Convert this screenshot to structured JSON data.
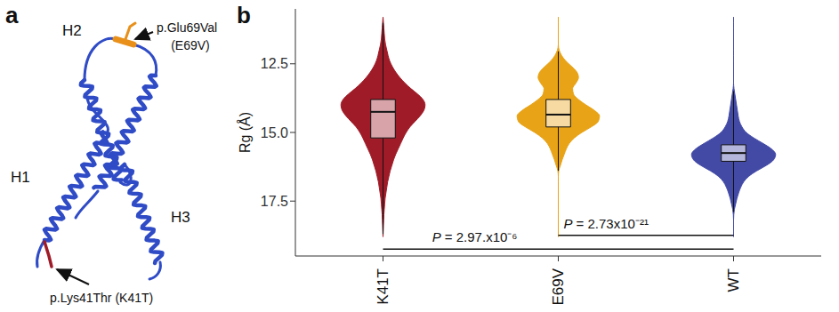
{
  "diagram": {
    "panel_label": "a",
    "helices": [
      "H1",
      "H2",
      "H3"
    ],
    "mutations": [
      {
        "label": "p.Glu69Val",
        "short": "(E69V)",
        "color": "#e8901a"
      },
      {
        "label": "p.Lys41Thr",
        "short": "(K41T)",
        "color": "#9e1b27"
      }
    ]
  },
  "chart_data": {
    "type": "violin",
    "panel_label": "b",
    "y_label": "Rg (Å)",
    "categories": [
      "K41T",
      "E69V",
      "WT"
    ],
    "ylim": [
      10.5,
      19.5
    ],
    "yticks": [
      12.5,
      {
        "value": 15,
        "label": "15.0"
      },
      17.5
    ],
    "violins": {
      "rg": [
        10.8,
        11.0,
        11.2,
        11.4,
        11.6,
        11.8,
        12.0,
        12.2,
        12.4,
        12.6,
        12.8,
        13.0,
        13.2,
        13.4,
        13.6,
        13.8,
        14.0,
        14.2,
        14.4,
        14.6,
        14.8,
        15.0,
        15.2,
        15.4,
        15.6,
        15.8,
        16.0,
        16.2,
        16.4,
        16.6,
        16.8,
        17.0,
        17.2,
        17.4,
        17.6,
        17.8,
        18.0,
        18.2,
        18.4,
        18.6,
        18.8
      ]
    },
    "series": [
      {
        "name": "K41T",
        "color": "#9e1b27",
        "density": [
          0,
          0.01,
          0.02,
          0.03,
          0.04,
          0.06,
          0.09,
          0.12,
          0.16,
          0.22,
          0.3,
          0.4,
          0.52,
          0.66,
          0.82,
          0.95,
          1.0,
          0.97,
          0.88,
          0.76,
          0.64,
          0.55,
          0.48,
          0.42,
          0.36,
          0.3,
          0.25,
          0.21,
          0.17,
          0.14,
          0.11,
          0.09,
          0.07,
          0.05,
          0.04,
          0.03,
          0.02,
          0.015,
          0.01,
          0.005,
          0
        ],
        "box": {
          "q1": 13.8,
          "median": 14.25,
          "q3": 15.2,
          "whisker_low": 11.0,
          "whisker_high": 18.7
        }
      },
      {
        "name": "E69V",
        "color": "#e8a317",
        "density": [
          0,
          0,
          0,
          0,
          0,
          0,
          0.02,
          0.08,
          0.18,
          0.32,
          0.44,
          0.48,
          0.42,
          0.34,
          0.36,
          0.48,
          0.66,
          0.86,
          0.98,
          0.95,
          0.78,
          0.56,
          0.38,
          0.26,
          0.19,
          0.14,
          0.09,
          0.05,
          0.01,
          0,
          0,
          0,
          0,
          0,
          0,
          0,
          0,
          0,
          0,
          0,
          0
        ],
        "box": {
          "q1": 13.8,
          "median": 14.35,
          "q3": 14.8,
          "whisker_low": 12.05,
          "whisker_high": 16.4
        }
      },
      {
        "name": "WT",
        "color": "#434aa6",
        "density": [
          0,
          0,
          0,
          0,
          0,
          0,
          0,
          0,
          0,
          0,
          0,
          0,
          0,
          0.01,
          0.03,
          0.05,
          0.07,
          0.09,
          0.11,
          0.14,
          0.2,
          0.3,
          0.48,
          0.7,
          0.9,
          1.0,
          0.95,
          0.78,
          0.55,
          0.36,
          0.24,
          0.17,
          0.12,
          0.08,
          0.05,
          0.02,
          0.005,
          0,
          0,
          0,
          0
        ],
        "box": {
          "q1": 15.45,
          "median": 15.75,
          "q3": 16.05,
          "whisker_low": 13.5,
          "whisker_high": 17.9
        }
      }
    ],
    "annotations": [
      {
        "text": "P = 2.97.x10⁻⁶",
        "from": "K41T",
        "to": "WT"
      },
      {
        "text": "P = 2.73x10⁻²¹",
        "from": "E69V",
        "to": "WT"
      }
    ]
  }
}
